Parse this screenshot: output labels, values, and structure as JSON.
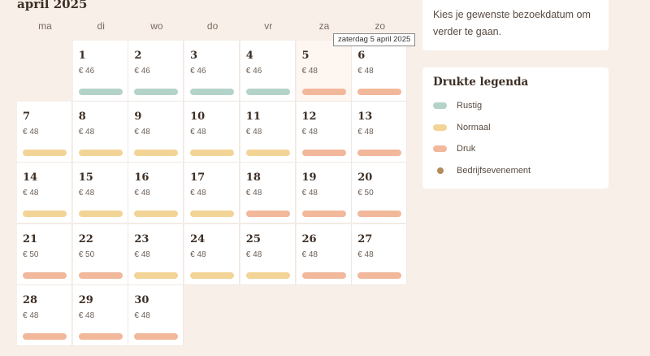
{
  "calendar": {
    "month_title": "april 2025",
    "weekdays": [
      "ma",
      "di",
      "wo",
      "do",
      "vr",
      "za",
      "zo"
    ],
    "first_weekday_index": 1,
    "hovered_day": 5,
    "days": [
      {
        "day": "1",
        "price": "€ 46",
        "level": "rustig"
      },
      {
        "day": "2",
        "price": "€ 46",
        "level": "rustig"
      },
      {
        "day": "3",
        "price": "€ 46",
        "level": "rustig"
      },
      {
        "day": "4",
        "price": "€ 46",
        "level": "rustig"
      },
      {
        "day": "5",
        "price": "€ 48",
        "level": "druk"
      },
      {
        "day": "6",
        "price": "€ 48",
        "level": "druk"
      },
      {
        "day": "7",
        "price": "€ 48",
        "level": "normaal"
      },
      {
        "day": "8",
        "price": "€ 48",
        "level": "normaal"
      },
      {
        "day": "9",
        "price": "€ 48",
        "level": "normaal"
      },
      {
        "day": "10",
        "price": "€ 48",
        "level": "normaal"
      },
      {
        "day": "11",
        "price": "€ 48",
        "level": "normaal"
      },
      {
        "day": "12",
        "price": "€ 48",
        "level": "druk"
      },
      {
        "day": "13",
        "price": "€ 48",
        "level": "druk"
      },
      {
        "day": "14",
        "price": "€ 48",
        "level": "normaal"
      },
      {
        "day": "15",
        "price": "€ 48",
        "level": "normaal"
      },
      {
        "day": "16",
        "price": "€ 48",
        "level": "normaal"
      },
      {
        "day": "17",
        "price": "€ 48",
        "level": "normaal"
      },
      {
        "day": "18",
        "price": "€ 48",
        "level": "druk"
      },
      {
        "day": "19",
        "price": "€ 48",
        "level": "druk"
      },
      {
        "day": "20",
        "price": "€ 50",
        "level": "druk"
      },
      {
        "day": "21",
        "price": "€ 50",
        "level": "druk"
      },
      {
        "day": "22",
        "price": "€ 50",
        "level": "druk"
      },
      {
        "day": "23",
        "price": "€ 48",
        "level": "normaal"
      },
      {
        "day": "24",
        "price": "€ 48",
        "level": "normaal"
      },
      {
        "day": "25",
        "price": "€ 48",
        "level": "normaal"
      },
      {
        "day": "26",
        "price": "€ 48",
        "level": "druk"
      },
      {
        "day": "27",
        "price": "€ 48",
        "level": "druk"
      },
      {
        "day": "28",
        "price": "€ 48",
        "level": "druk"
      },
      {
        "day": "29",
        "price": "€ 48",
        "level": "druk"
      },
      {
        "day": "30",
        "price": "€ 48",
        "level": "druk"
      }
    ],
    "tooltip": "zaterdag 5 april 2025"
  },
  "intro": {
    "text": "Kies je gewenste bezoekdatum om verder te gaan."
  },
  "legend": {
    "title": "Drukte legenda",
    "items": [
      {
        "label": "Rustig",
        "key": "rustig",
        "shape": "pill"
      },
      {
        "label": "Normaal",
        "key": "normaal",
        "shape": "pill"
      },
      {
        "label": "Druk",
        "key": "druk",
        "shape": "pill"
      },
      {
        "label": "Bedrijfsevenement",
        "key": "event",
        "shape": "dot"
      }
    ]
  },
  "colors": {
    "rustig": "#b4d3c8",
    "normaal": "#f3d497",
    "druk": "#f2b89b",
    "event": "#b28c5d"
  }
}
